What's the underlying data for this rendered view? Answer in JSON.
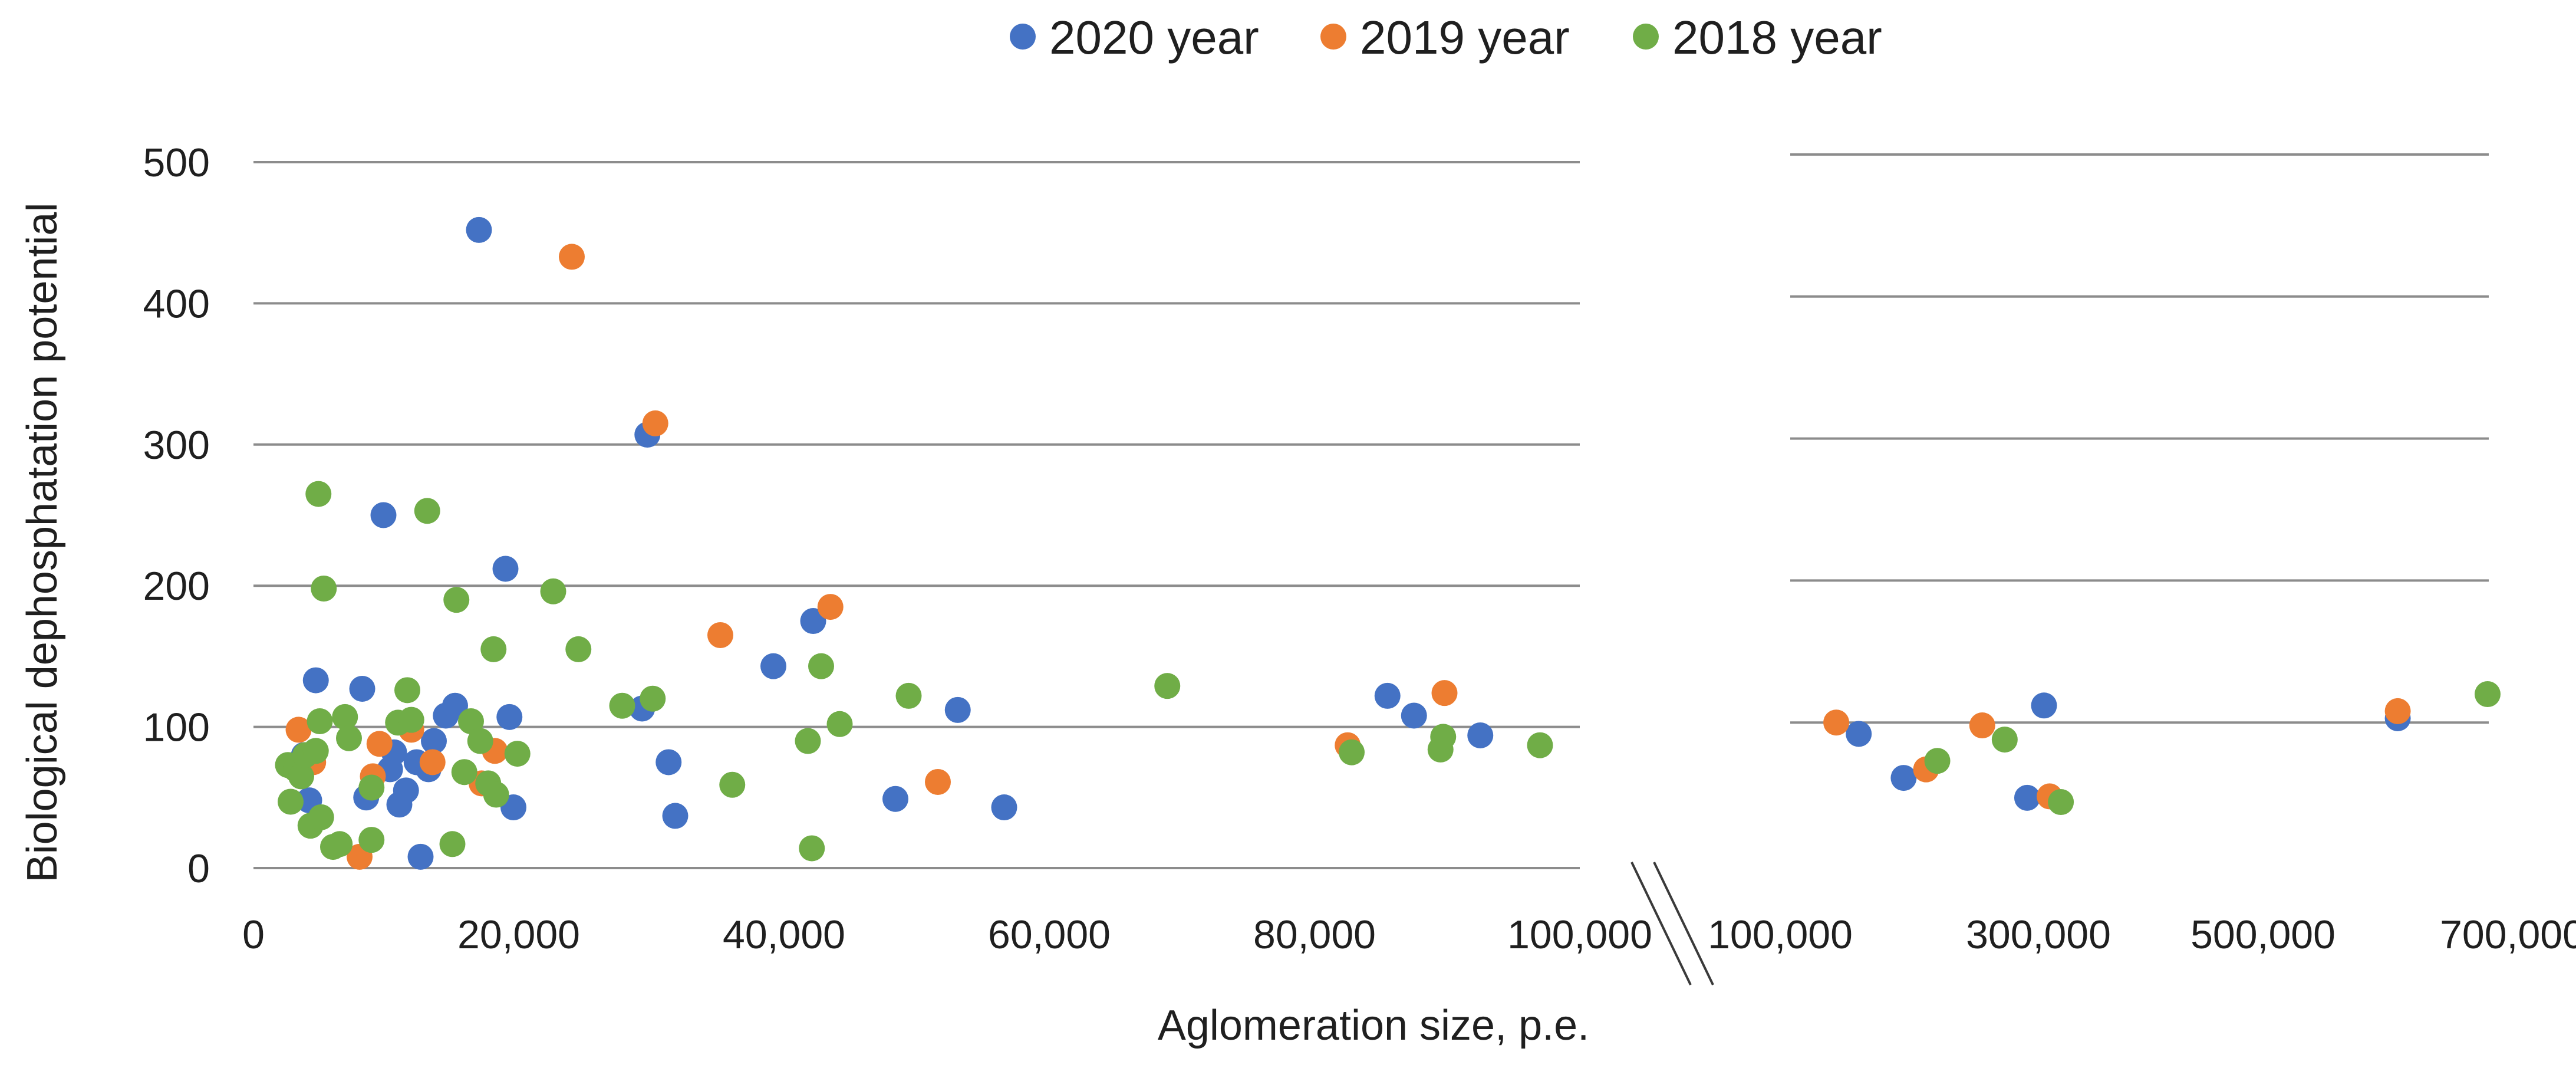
{
  "chart_data": {
    "type": "scatter",
    "title": "",
    "xlabel": "Aglomeration size, p.e.",
    "ylabel": "Biological dephosphatation potential",
    "ylim": [
      0,
      500
    ],
    "yticks": [
      0,
      100,
      200,
      300,
      400,
      500
    ],
    "grid": true,
    "legend_position": "top-center",
    "colors": {
      "2020 year": "#4472c4",
      "2019 year": "#ed7d31",
      "2018 year": "#70ad47"
    },
    "panels": [
      {
        "name": "left",
        "xlim": [
          0,
          100000
        ],
        "xticks": [
          0,
          20000,
          40000,
          60000,
          80000,
          100000
        ],
        "xtick_labels": [
          "0",
          "20,000",
          "40,000",
          "60,000",
          "80,000",
          "100,000"
        ]
      },
      {
        "name": "right",
        "xlim": [
          100000,
          700000
        ],
        "xticks": [
          100000,
          300000,
          500000,
          700000
        ],
        "xtick_labels": [
          "100,000",
          "300,000",
          "500,000",
          "700,000"
        ]
      }
    ],
    "series": [
      {
        "name": "2020 year",
        "color": "#4472c4",
        "points": [
          {
            "x": 3800,
            "y": 80
          },
          {
            "x": 4200,
            "y": 48
          },
          {
            "x": 4700,
            "y": 133
          },
          {
            "x": 8200,
            "y": 127
          },
          {
            "x": 8500,
            "y": 50
          },
          {
            "x": 9800,
            "y": 250
          },
          {
            "x": 10300,
            "y": 70
          },
          {
            "x": 10600,
            "y": 82
          },
          {
            "x": 11000,
            "y": 45
          },
          {
            "x": 11500,
            "y": 55
          },
          {
            "x": 12300,
            "y": 75
          },
          {
            "x": 12600,
            "y": 8
          },
          {
            "x": 13200,
            "y": 70
          },
          {
            "x": 13600,
            "y": 90
          },
          {
            "x": 14500,
            "y": 108
          },
          {
            "x": 15200,
            "y": 115
          },
          {
            "x": 17000,
            "y": 452
          },
          {
            "x": 19000,
            "y": 212
          },
          {
            "x": 19300,
            "y": 107
          },
          {
            "x": 19600,
            "y": 43
          },
          {
            "x": 29300,
            "y": 113
          },
          {
            "x": 29700,
            "y": 307
          },
          {
            "x": 31300,
            "y": 75
          },
          {
            "x": 31800,
            "y": 37
          },
          {
            "x": 39200,
            "y": 143
          },
          {
            "x": 42200,
            "y": 175
          },
          {
            "x": 48400,
            "y": 49
          },
          {
            "x": 53100,
            "y": 112
          },
          {
            "x": 56600,
            "y": 43
          },
          {
            "x": 85500,
            "y": 122
          },
          {
            "x": 87500,
            "y": 108
          },
          {
            "x": 92500,
            "y": 94
          },
          {
            "x": 140000,
            "y": 92
          },
          {
            "x": 180000,
            "y": 61
          },
          {
            "x": 290000,
            "y": 47
          },
          {
            "x": 305000,
            "y": 112
          },
          {
            "x": 620000,
            "y": 103
          }
        ]
      },
      {
        "name": "2019 year",
        "color": "#ed7d31",
        "points": [
          {
            "x": 3400,
            "y": 98
          },
          {
            "x": 4500,
            "y": 75
          },
          {
            "x": 8000,
            "y": 8
          },
          {
            "x": 9000,
            "y": 65
          },
          {
            "x": 9500,
            "y": 88
          },
          {
            "x": 11900,
            "y": 98
          },
          {
            "x": 13500,
            "y": 75
          },
          {
            "x": 17200,
            "y": 60
          },
          {
            "x": 18200,
            "y": 83
          },
          {
            "x": 24000,
            "y": 433
          },
          {
            "x": 30300,
            "y": 315
          },
          {
            "x": 35200,
            "y": 165
          },
          {
            "x": 43500,
            "y": 185
          },
          {
            "x": 51600,
            "y": 61
          },
          {
            "x": 82500,
            "y": 87
          },
          {
            "x": 89800,
            "y": 124
          },
          {
            "x": 120000,
            "y": 100
          },
          {
            "x": 200000,
            "y": 67
          },
          {
            "x": 250000,
            "y": 98
          },
          {
            "x": 310000,
            "y": 48
          },
          {
            "x": 620000,
            "y": 108
          }
        ]
      },
      {
        "name": "2018 year",
        "color": "#70ad47",
        "points": [
          {
            "x": 2600,
            "y": 73
          },
          {
            "x": 2800,
            "y": 47
          },
          {
            "x": 3200,
            "y": 70
          },
          {
            "x": 3600,
            "y": 65
          },
          {
            "x": 3900,
            "y": 80
          },
          {
            "x": 4300,
            "y": 30
          },
          {
            "x": 4700,
            "y": 83
          },
          {
            "x": 4900,
            "y": 265
          },
          {
            "x": 5000,
            "y": 104
          },
          {
            "x": 5100,
            "y": 36
          },
          {
            "x": 5300,
            "y": 198
          },
          {
            "x": 6000,
            "y": 15
          },
          {
            "x": 6500,
            "y": 17
          },
          {
            "x": 6900,
            "y": 107
          },
          {
            "x": 7200,
            "y": 92
          },
          {
            "x": 8900,
            "y": 20
          },
          {
            "x": 8900,
            "y": 57
          },
          {
            "x": 10900,
            "y": 103
          },
          {
            "x": 11600,
            "y": 126
          },
          {
            "x": 11900,
            "y": 105
          },
          {
            "x": 13100,
            "y": 253
          },
          {
            "x": 15000,
            "y": 17
          },
          {
            "x": 15300,
            "y": 190
          },
          {
            "x": 15900,
            "y": 68
          },
          {
            "x": 16400,
            "y": 104
          },
          {
            "x": 17100,
            "y": 90
          },
          {
            "x": 17700,
            "y": 60
          },
          {
            "x": 18100,
            "y": 155
          },
          {
            "x": 18300,
            "y": 52
          },
          {
            "x": 19900,
            "y": 81
          },
          {
            "x": 22600,
            "y": 196
          },
          {
            "x": 24500,
            "y": 155
          },
          {
            "x": 27800,
            "y": 115
          },
          {
            "x": 30100,
            "y": 120
          },
          {
            "x": 36100,
            "y": 59
          },
          {
            "x": 41800,
            "y": 90
          },
          {
            "x": 42100,
            "y": 14
          },
          {
            "x": 42800,
            "y": 143
          },
          {
            "x": 44200,
            "y": 102
          },
          {
            "x": 49400,
            "y": 122
          },
          {
            "x": 68900,
            "y": 129
          },
          {
            "x": 82800,
            "y": 82
          },
          {
            "x": 89500,
            "y": 84
          },
          {
            "x": 89700,
            "y": 93
          },
          {
            "x": 97000,
            "y": 87
          },
          {
            "x": 210000,
            "y": 73
          },
          {
            "x": 270000,
            "y": 88
          },
          {
            "x": 320000,
            "y": 44
          },
          {
            "x": 700000,
            "y": 120
          }
        ]
      }
    ]
  }
}
